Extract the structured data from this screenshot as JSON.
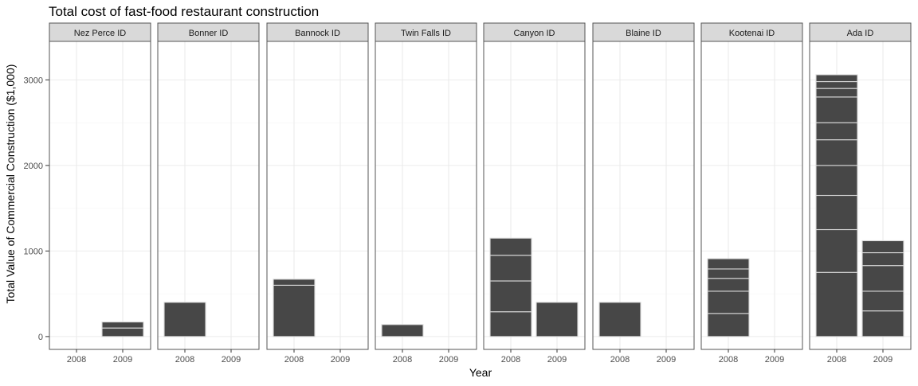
{
  "chart_data": {
    "type": "bar",
    "stacked": true,
    "faceted": true,
    "title": "Total cost of fast-food restaurant construction",
    "xlabel": "Year",
    "ylabel": "Total Value of Commercial Construction ($1,000)",
    "categories": [
      "2008",
      "2009"
    ],
    "ylim": [
      -150,
      3450
    ],
    "yticks": [
      0,
      1000,
      2000,
      3000
    ],
    "grid": true,
    "colors": {
      "bar_fill": "#474747",
      "bar_stroke": "#d9d9d9",
      "strip_fill": "#d9d9d9",
      "grid": "#ebebeb",
      "panel_border": "#555555"
    },
    "panels": [
      {
        "name": "Nez Perce ID",
        "stacks": [
          [],
          [
            100,
            70
          ]
        ]
      },
      {
        "name": "Bonner ID",
        "stacks": [
          [
            400
          ],
          []
        ]
      },
      {
        "name": "Bannock ID",
        "stacks": [
          [
            600,
            70
          ],
          []
        ]
      },
      {
        "name": "Twin Falls ID",
        "stacks": [
          [
            140
          ],
          []
        ]
      },
      {
        "name": "Canyon ID",
        "stacks": [
          [
            290,
            360,
            300,
            200
          ],
          [
            400
          ]
        ]
      },
      {
        "name": "Blaine ID",
        "stacks": [
          [
            400
          ],
          []
        ]
      },
      {
        "name": "Kootenai ID",
        "stacks": [
          [
            270,
            260,
            150,
            110,
            120
          ],
          []
        ]
      },
      {
        "name": "Ada ID",
        "stacks": [
          [
            750,
            500,
            400,
            350,
            300,
            200,
            300,
            100,
            80,
            80
          ],
          [
            300,
            230,
            300,
            150,
            140
          ]
        ]
      }
    ]
  }
}
